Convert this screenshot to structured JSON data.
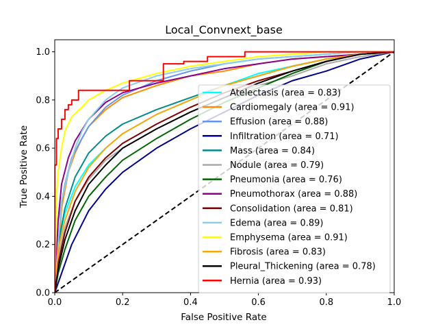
{
  "chart_data": {
    "type": "line",
    "title": "Local_Convnext_base",
    "xlabel": "False Positive Rate",
    "ylabel": "True Positive Rate",
    "xlim": [
      0,
      1
    ],
    "ylim": [
      0,
      1.05
    ],
    "xticks": [
      "0.0",
      "0.2",
      "0.4",
      "0.6",
      "0.8",
      "1.0"
    ],
    "yticks": [
      "0.0",
      "0.2",
      "0.4",
      "0.6",
      "0.8",
      "1.0"
    ],
    "legend_position": "lower-right",
    "diagonal": {
      "name": "chance",
      "color": "#000000",
      "style": "dashed",
      "x": [
        0,
        1
      ],
      "y": [
        0,
        1
      ]
    },
    "series": [
      {
        "name": "Atelectasis",
        "auc": "0.83",
        "label": "Atelectasis (area = 0.83)",
        "color": "#00ffff",
        "x": [
          0,
          0.01,
          0.03,
          0.06,
          0.1,
          0.15,
          0.2,
          0.3,
          0.4,
          0.5,
          0.6,
          0.7,
          0.8,
          0.9,
          1.0
        ],
        "y": [
          0,
          0.2,
          0.33,
          0.44,
          0.53,
          0.6,
          0.66,
          0.74,
          0.8,
          0.86,
          0.91,
          0.94,
          0.97,
          0.99,
          1.0
        ]
      },
      {
        "name": "Cardiomegaly",
        "auc": "0.91",
        "label": "Cardiomegaly (area = 0.91)",
        "color": "#ff8c00",
        "x": [
          0,
          0.01,
          0.02,
          0.04,
          0.06,
          0.08,
          0.1,
          0.15,
          0.2,
          0.3,
          0.4,
          0.5,
          0.6,
          0.7,
          0.8,
          0.9,
          1.0
        ],
        "y": [
          0,
          0.15,
          0.35,
          0.5,
          0.58,
          0.64,
          0.69,
          0.76,
          0.81,
          0.86,
          0.9,
          0.92,
          0.95,
          0.97,
          0.98,
          0.99,
          1.0
        ]
      },
      {
        "name": "Effusion",
        "auc": "0.88",
        "label": "Effusion (area = 0.88)",
        "color": "#6495ed",
        "x": [
          0,
          0.01,
          0.03,
          0.05,
          0.08,
          0.1,
          0.15,
          0.2,
          0.3,
          0.4,
          0.5,
          0.6,
          0.7,
          0.8,
          0.9,
          1.0
        ],
        "y": [
          0,
          0.3,
          0.45,
          0.56,
          0.64,
          0.69,
          0.77,
          0.82,
          0.88,
          0.92,
          0.95,
          0.97,
          0.98,
          0.99,
          1.0,
          1.0
        ]
      },
      {
        "name": "Infiltration",
        "auc": "0.71",
        "label": "Infiltration (area = 0.71)",
        "color": "#00008b",
        "x": [
          0,
          0.02,
          0.05,
          0.1,
          0.15,
          0.2,
          0.3,
          0.4,
          0.5,
          0.6,
          0.7,
          0.8,
          0.9,
          1.0
        ],
        "y": [
          0,
          0.08,
          0.2,
          0.34,
          0.43,
          0.5,
          0.6,
          0.68,
          0.75,
          0.82,
          0.88,
          0.92,
          0.97,
          1.0
        ]
      },
      {
        "name": "Mass",
        "auc": "0.84",
        "label": "Mass (area = 0.84)",
        "color": "#008b8b",
        "x": [
          0,
          0.01,
          0.03,
          0.06,
          0.1,
          0.15,
          0.2,
          0.3,
          0.4,
          0.5,
          0.6,
          0.7,
          0.8,
          0.9,
          1.0
        ],
        "y": [
          0,
          0.2,
          0.35,
          0.48,
          0.58,
          0.65,
          0.7,
          0.76,
          0.81,
          0.86,
          0.9,
          0.94,
          0.97,
          0.99,
          1.0
        ]
      },
      {
        "name": "Nodule",
        "auc": "0.79",
        "label": "Nodule (area = 0.79)",
        "color": "#a9a9a9",
        "x": [
          0,
          0.01,
          0.03,
          0.06,
          0.1,
          0.15,
          0.2,
          0.3,
          0.4,
          0.5,
          0.6,
          0.7,
          0.8,
          0.9,
          1.0
        ],
        "y": [
          0,
          0.15,
          0.27,
          0.38,
          0.47,
          0.55,
          0.6,
          0.68,
          0.75,
          0.81,
          0.86,
          0.9,
          0.95,
          0.98,
          1.0
        ]
      },
      {
        "name": "Pneumonia",
        "auc": "0.76",
        "label": "Pneumonia (area = 0.76)",
        "color": "#006400",
        "x": [
          0,
          0.01,
          0.03,
          0.06,
          0.1,
          0.15,
          0.2,
          0.3,
          0.4,
          0.5,
          0.6,
          0.7,
          0.8,
          0.9,
          1.0
        ],
        "y": [
          0,
          0.08,
          0.18,
          0.3,
          0.4,
          0.48,
          0.55,
          0.64,
          0.72,
          0.79,
          0.85,
          0.91,
          0.96,
          0.99,
          1.0
        ]
      },
      {
        "name": "Pneumothorax",
        "auc": "0.88",
        "label": "Pneumothorax (area = 0.88)",
        "color": "#8b008b",
        "x": [
          0,
          0.01,
          0.02,
          0.04,
          0.06,
          0.1,
          0.15,
          0.2,
          0.3,
          0.4,
          0.5,
          0.6,
          0.7,
          0.8,
          0.9,
          1.0
        ],
        "y": [
          0,
          0.3,
          0.45,
          0.56,
          0.63,
          0.72,
          0.79,
          0.83,
          0.87,
          0.9,
          0.93,
          0.95,
          0.97,
          0.98,
          0.99,
          1.0
        ]
      },
      {
        "name": "Consolidation",
        "auc": "0.81",
        "label": "Consolidation (area = 0.81)",
        "color": "#800000",
        "x": [
          0,
          0.01,
          0.03,
          0.06,
          0.1,
          0.15,
          0.2,
          0.3,
          0.4,
          0.5,
          0.6,
          0.7,
          0.8,
          0.9,
          1.0
        ],
        "y": [
          0,
          0.12,
          0.25,
          0.38,
          0.48,
          0.56,
          0.62,
          0.7,
          0.77,
          0.83,
          0.88,
          0.92,
          0.96,
          0.99,
          1.0
        ]
      },
      {
        "name": "Edema",
        "auc": "0.89",
        "label": "Edema (area = 0.89)",
        "color": "#87ceeb",
        "x": [
          0,
          0.01,
          0.02,
          0.04,
          0.06,
          0.08,
          0.1,
          0.15,
          0.2,
          0.3,
          0.4,
          0.5,
          0.6,
          0.7,
          0.8,
          0.9,
          1.0
        ],
        "y": [
          0,
          0.2,
          0.38,
          0.5,
          0.6,
          0.67,
          0.72,
          0.8,
          0.85,
          0.9,
          0.93,
          0.95,
          0.97,
          0.98,
          0.99,
          1.0,
          1.0
        ]
      },
      {
        "name": "Emphysema",
        "auc": "0.91",
        "label": "Emphysema (area = 0.91)",
        "color": "#ffff00",
        "x": [
          0,
          0.005,
          0.01,
          0.02,
          0.03,
          0.05,
          0.08,
          0.1,
          0.15,
          0.2,
          0.3,
          0.4,
          0.5,
          0.6,
          0.7,
          0.8,
          0.9,
          1.0
        ],
        "y": [
          0,
          0.4,
          0.5,
          0.6,
          0.67,
          0.73,
          0.77,
          0.8,
          0.84,
          0.87,
          0.91,
          0.94,
          0.96,
          0.98,
          0.99,
          1.0,
          1.0,
          1.0
        ]
      },
      {
        "name": "Fibrosis",
        "auc": "0.83",
        "label": "Fibrosis (area = 0.83)",
        "color": "#ffa500",
        "x": [
          0,
          0.01,
          0.03,
          0.06,
          0.1,
          0.15,
          0.2,
          0.3,
          0.4,
          0.5,
          0.6,
          0.7,
          0.8,
          0.9,
          1.0
        ],
        "y": [
          0,
          0.18,
          0.3,
          0.42,
          0.52,
          0.6,
          0.66,
          0.74,
          0.8,
          0.86,
          0.9,
          0.94,
          0.97,
          0.99,
          1.0
        ]
      },
      {
        "name": "Pleural_Thickening",
        "auc": "0.78",
        "label": "Pleural_Thickening (area = 0.78)",
        "color": "#000000",
        "x": [
          0,
          0.01,
          0.03,
          0.06,
          0.1,
          0.15,
          0.2,
          0.3,
          0.4,
          0.5,
          0.6,
          0.7,
          0.8,
          0.9,
          1.0
        ],
        "y": [
          0,
          0.1,
          0.22,
          0.34,
          0.45,
          0.53,
          0.6,
          0.68,
          0.75,
          0.81,
          0.87,
          0.92,
          0.96,
          0.99,
          1.0
        ]
      },
      {
        "name": "Hernia",
        "auc": "0.93",
        "label": "Hernia (area = 0.93)",
        "color": "#ff0000",
        "step": true,
        "x": [
          0,
          0,
          0.005,
          0.005,
          0.01,
          0.01,
          0.02,
          0.02,
          0.03,
          0.03,
          0.04,
          0.04,
          0.05,
          0.05,
          0.07,
          0.07,
          0.1,
          0.1,
          0.22,
          0.22,
          0.25,
          0.25,
          0.32,
          0.32,
          0.38,
          0.38,
          0.45,
          0.45,
          0.56,
          0.56,
          1.0
        ],
        "y": [
          0,
          0.53,
          0.53,
          0.64,
          0.64,
          0.68,
          0.68,
          0.72,
          0.72,
          0.76,
          0.76,
          0.78,
          0.78,
          0.8,
          0.8,
          0.84,
          0.84,
          0.84,
          0.84,
          0.88,
          0.88,
          0.88,
          0.88,
          0.95,
          0.95,
          0.96,
          0.96,
          0.98,
          0.98,
          1.0,
          1.0
        ]
      }
    ]
  }
}
